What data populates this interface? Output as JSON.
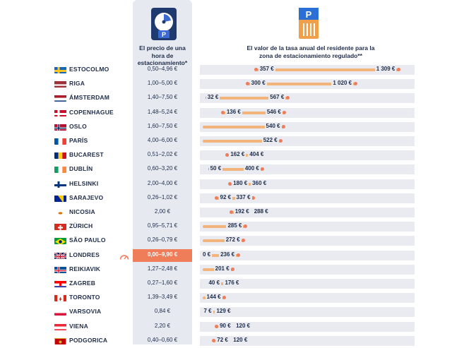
{
  "header": {
    "price_col": "El precio de una hora de estacionamiento*",
    "fee_col": "El valor de la tasa anual del residente para la zona de estacionamiento regulado**",
    "disc_icon": "parking-disc-icon",
    "box_icon": "parking-meter-icon"
  },
  "colors": {
    "bar": "#f2b47a",
    "dot": "#ef7d59",
    "highlight": "#ef7d59",
    "column_bg": "#e6e9ef"
  },
  "chart_data": {
    "type": "range-bar",
    "title": "El valor de la tasa anual del residente para la zona de estacionamiento regulado**",
    "unit": "€",
    "xlim": [
      0,
      1400
    ],
    "highlight_city": "LONDRES",
    "rows": [
      {
        "city": "ESTOCOLMO",
        "flag": "se",
        "price": "0,50–4,96 €",
        "min": 357,
        "max": 1309,
        "min_label": "357 €",
        "max_label": "1 309 €"
      },
      {
        "city": "RIGA",
        "flag": "lv",
        "price": "1,00–5,00 €",
        "min": 300,
        "max": 1020,
        "min_label": "300 €",
        "max_label": "1 020 €"
      },
      {
        "city": "ÁMSTERDAM",
        "flag": "nl",
        "price": "1,40–7,50 €",
        "min": 32,
        "max": 567,
        "min_label": "32 €",
        "max_label": "567 €"
      },
      {
        "city": "COPENHAGUE",
        "flag": "dk",
        "price": "1,48–5,24 €",
        "min": 136,
        "max": 546,
        "min_label": "136 €",
        "max_label": "546 €"
      },
      {
        "city": "OSLO",
        "flag": "no",
        "price": "1,60–7,50 €",
        "min": null,
        "max": 540,
        "min_label": "",
        "max_label": "540 €"
      },
      {
        "city": "PARÍS",
        "flag": "fr",
        "price": "4,00–6,00 €",
        "min": null,
        "max": 522,
        "min_label": "",
        "max_label": "522 €"
      },
      {
        "city": "BUCAREST",
        "flag": "ro",
        "price": "0,51–2,02 €",
        "min": 162,
        "max": 404,
        "min_label": "162 €",
        "max_label": "404 €"
      },
      {
        "city": "DUBLÍN",
        "flag": "ie",
        "price": "0,60–3,20 €",
        "min": 50,
        "max": 400,
        "min_label": "50 €",
        "max_label": "400 €"
      },
      {
        "city": "HELSINKI",
        "flag": "fi",
        "price": "2,00–4,00 €",
        "min": 180,
        "max": 360,
        "min_label": "180 €",
        "max_label": "360 €"
      },
      {
        "city": "SARAJEVO",
        "flag": "ba",
        "price": "0,26–1,02 €",
        "min": 92,
        "max": 337,
        "min_label": "92 €",
        "max_label": "337 €"
      },
      {
        "city": "NICOSIA",
        "flag": "cy",
        "price": "2,00 €",
        "min": 192,
        "max": 288,
        "min_label": "192 €",
        "max_label": "288 €"
      },
      {
        "city": "ZÜRICH",
        "flag": "ch",
        "price": "0,95–5,71 €",
        "min": null,
        "max": 285,
        "min_label": "",
        "max_label": "285 €"
      },
      {
        "city": "SÃO PAULO",
        "flag": "br",
        "price": "0,26–0,79 €",
        "min": null,
        "max": 272,
        "min_label": "",
        "max_label": "272 €"
      },
      {
        "city": "LONDRES",
        "flag": "gb",
        "price": "0,00–9,90 €",
        "min": 0,
        "max": 236,
        "min_label": "0 €",
        "max_label": "236 €"
      },
      {
        "city": "REIKIAVIK",
        "flag": "is",
        "price": "1,27–2,48 €",
        "min": null,
        "max": 201,
        "min_label": "",
        "max_label": "201 €"
      },
      {
        "city": "ZAGREB",
        "flag": "hr",
        "price": "0,27–1,60 €",
        "min": 40,
        "max": 176,
        "min_label": "40 €",
        "max_label": "176 €"
      },
      {
        "city": "TORONTO",
        "flag": "ca",
        "price": "1,39–3,49 €",
        "min": null,
        "max": 144,
        "min_label": "",
        "max_label": "144 €"
      },
      {
        "city": "VARSOVIA",
        "flag": "pl",
        "price": "0,84 €",
        "min": 7,
        "max": 129,
        "min_label": "7 €",
        "max_label": "129 €"
      },
      {
        "city": "VIENA",
        "flag": "at",
        "price": "2,20 €",
        "min": 90,
        "max": 120,
        "min_label": "90 €",
        "max_label": "120 €"
      },
      {
        "city": "PODGORICA",
        "flag": "me",
        "price": "0,40–0,60 €",
        "min": 72,
        "max": 120,
        "min_label": "72 €",
        "max_label": "120 €"
      }
    ]
  }
}
